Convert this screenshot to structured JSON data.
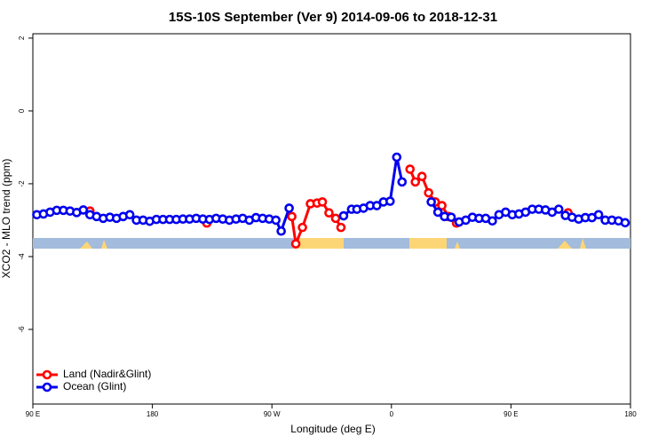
{
  "chart_data": {
    "type": "line",
    "title": "15S-10S September (Ver 9)   2014-09-06 to 2018-12-31",
    "x_label": "Longitude (deg E)",
    "y_label": "XCO2 - MLO trend (ppm)",
    "xlim": [
      90,
      540
    ],
    "xticks": [
      {
        "value": 90,
        "label": "90 E"
      },
      180,
      {
        "value": 270,
        "label": "90 W"
      },
      {
        "value": 360,
        "label": "0"
      },
      {
        "value": 450,
        "label": "90 E"
      },
      180
    ],
    "ylim": [
      -8.05,
      2.12
    ],
    "yticks": [
      2,
      0,
      -2,
      -4,
      -6
    ],
    "legend": "bottom-left",
    "series": [
      {
        "name": "Land (Nadir&Glint)",
        "color": "#ff0000",
        "x": [
          133,
          177,
          221,
          253,
          285,
          288,
          293,
          299,
          304,
          308,
          313,
          318,
          322,
          348,
          374,
          378,
          383,
          388,
          393,
          398,
          403,
          409,
          450,
          493
        ],
        "values": [
          -2.75,
          null,
          -3.08,
          null,
          -2.9,
          -3.65,
          -3.2,
          -2.55,
          -2.53,
          -2.5,
          -2.8,
          -2.95,
          -3.2,
          null,
          -1.6,
          -1.95,
          -1.8,
          -2.25,
          -2.5,
          -2.6,
          -2.9,
          -3.08,
          null,
          -2.8
        ]
      },
      {
        "name": "Ocean (Glint)",
        "color": "#0000ee",
        "x": [
          93,
          98,
          103,
          108,
          113,
          118,
          123,
          128,
          133,
          138,
          143,
          148,
          153,
          158,
          163,
          168,
          173,
          178,
          183,
          188,
          193,
          198,
          203,
          208,
          213,
          218,
          223,
          228,
          233,
          238,
          243,
          248,
          253,
          258,
          263,
          268,
          273,
          277,
          283,
          300,
          324,
          330,
          334,
          339,
          344,
          349,
          354,
          359,
          364,
          368,
          380,
          390,
          395,
          400,
          405,
          411,
          416,
          421,
          426,
          431,
          436,
          441,
          446,
          451,
          456,
          461,
          466,
          471,
          476,
          481,
          486,
          491,
          496,
          501,
          506,
          511,
          516,
          521,
          526,
          531,
          536
        ],
        "values": [
          -2.85,
          -2.83,
          -2.78,
          -2.73,
          -2.73,
          -2.75,
          -2.79,
          -2.72,
          -2.85,
          -2.9,
          -2.95,
          -2.92,
          -2.95,
          -2.9,
          -2.85,
          -3.0,
          -3.0,
          -3.03,
          -2.98,
          -2.98,
          -2.98,
          -2.98,
          -2.97,
          -2.97,
          -2.95,
          -2.97,
          -2.98,
          -2.95,
          -2.97,
          -3.0,
          -2.97,
          -2.95,
          -3.0,
          -2.93,
          -2.95,
          -2.97,
          -3.0,
          -3.3,
          -2.67,
          null,
          -2.88,
          -2.7,
          -2.7,
          -2.67,
          -2.6,
          -2.6,
          -2.5,
          -2.48,
          -1.27,
          -1.95,
          null,
          -2.5,
          -2.78,
          -2.9,
          -2.92,
          -3.05,
          -3.0,
          -2.92,
          -2.95,
          -2.95,
          -3.02,
          -2.85,
          -2.78,
          -2.85,
          -2.83,
          -2.78,
          -2.7,
          -2.7,
          -2.72,
          -2.78,
          -2.7,
          -2.87,
          -2.92,
          -2.97,
          -2.93,
          -2.93,
          -2.85,
          -3.0,
          -3.0,
          -3.02,
          -3.07
        ]
      }
    ]
  }
}
